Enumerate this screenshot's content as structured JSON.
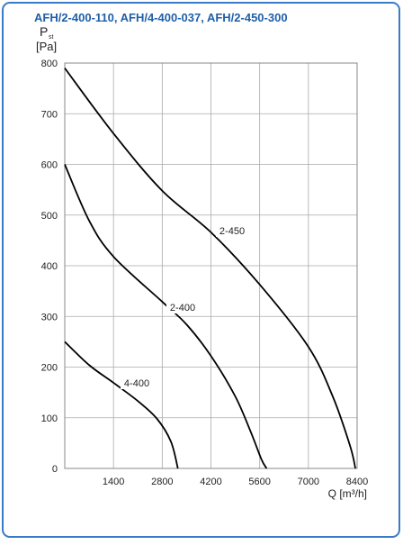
{
  "chart_data": {
    "type": "line",
    "title": "AFH/2-400-110, AFH/4-400-037, AFH/2-450-300",
    "y_label": {
      "symbol": "P",
      "subscript": "st",
      "unit": "[Pa]"
    },
    "x_label": "Q [m³/h]",
    "xlim": [
      0,
      8400
    ],
    "ylim": [
      0,
      800
    ],
    "xticks": [
      1400,
      2800,
      4200,
      5600,
      7000,
      8400
    ],
    "yticks": [
      0,
      100,
      200,
      300,
      400,
      500,
      600,
      700,
      800
    ],
    "grid": true,
    "series": [
      {
        "name": "2-450",
        "color": "#000000",
        "x": [
          0,
          1400,
          2800,
          4200,
          5600,
          7000,
          7700,
          8200,
          8350
        ],
        "values": [
          790,
          661,
          548,
          466,
          363,
          240,
          142,
          44,
          0
        ]
      },
      {
        "name": "2-400",
        "color": "#000000",
        "x": [
          0,
          700,
          1400,
          2800,
          3500,
          4200,
          4900,
          5350,
          5650,
          5800
        ],
        "values": [
          600,
          489,
          418,
          329,
          284,
          222,
          142,
          71,
          18,
          0
        ]
      },
      {
        "name": "4-400",
        "color": "#000000",
        "x": [
          0,
          700,
          1400,
          2100,
          2650,
          3050,
          3250
        ],
        "values": [
          250,
          204,
          169,
          133,
          98,
          53,
          0
        ]
      }
    ]
  }
}
